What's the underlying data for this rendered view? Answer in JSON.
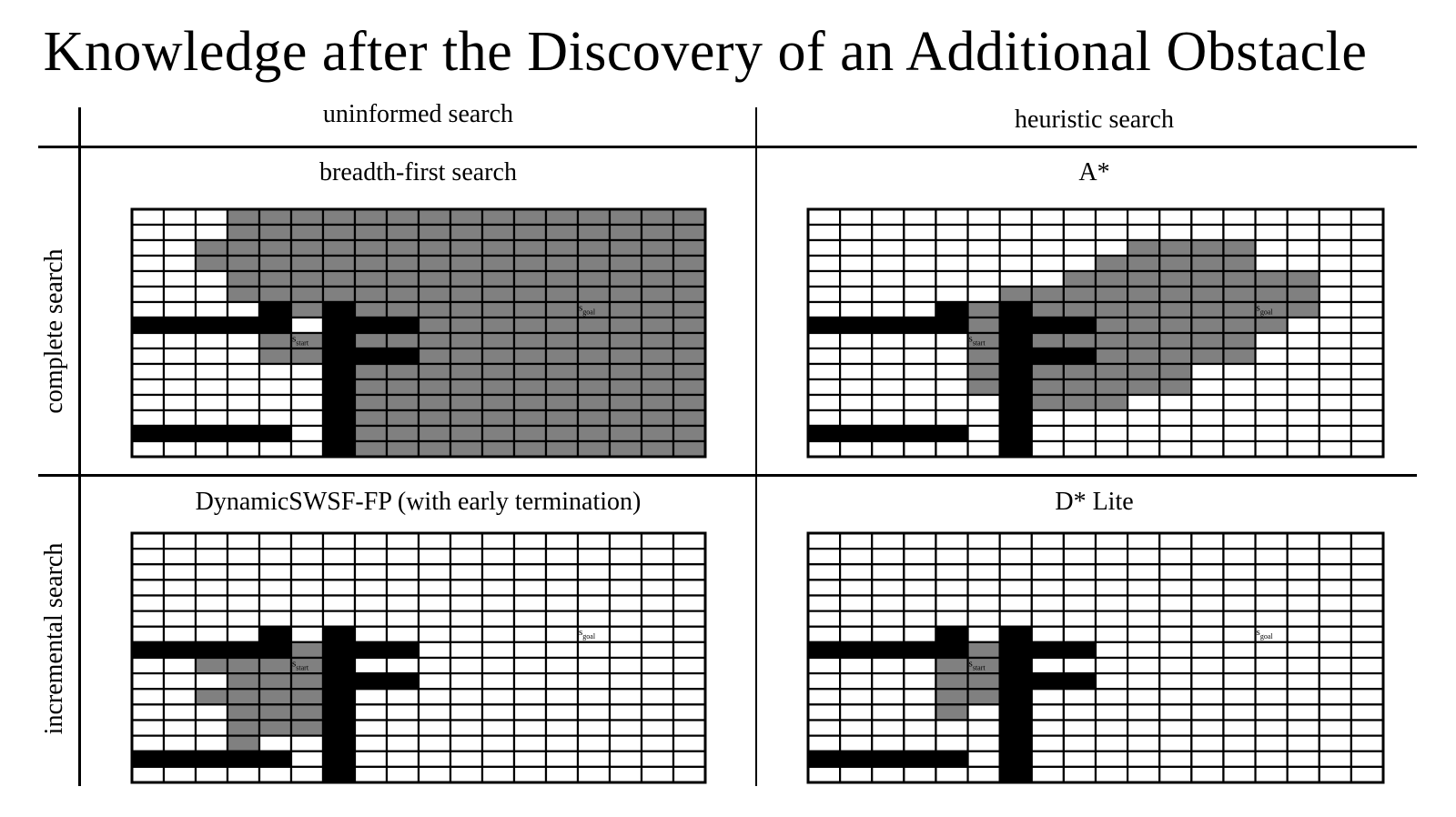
{
  "title": "Knowledge after the Discovery of an Additional Obstacle",
  "columns": [
    "uninformed search",
    "heuristic search"
  ],
  "rows": [
    "complete search",
    "incremental search"
  ],
  "panels": [
    {
      "id": "bfs",
      "title": "breadth-first search",
      "gray": [
        "0-2:3-18",
        "2-4:2-18",
        "4-5:3-18",
        "5-6:3-18",
        "6-7:4-18",
        "7-8:6-18",
        "8-10:4-18",
        "10-12:7-18",
        "12-16:7-18"
      ]
    },
    {
      "id": "astar",
      "title": "A*",
      "gray": [
        "2-3:10-14",
        "3-4:9-14",
        "4-5:8-16",
        "5-6:6-16",
        "6-7:5-16",
        "7-8:5-15",
        "8-10:5-14",
        "10-12:5-12",
        "12-13:7-10"
      ]
    },
    {
      "id": "dswsf",
      "title": "DynamicSWSF-FP (with early termination)",
      "gray": [
        "7-8:5-6",
        "8-9:2-6",
        "9-10:3-6",
        "10-11:2-6",
        "11-12:3-6",
        "12-13:3-6",
        "13-14:3-4"
      ]
    },
    {
      "id": "dstar",
      "title": "D* Lite",
      "gray": [
        "7-8:5-6",
        "8-9:4-6",
        "9-10:4-6",
        "10-11:4-6",
        "11-12:4-5"
      ]
    }
  ],
  "obstacles": [
    "7-8:0-5",
    "6-7:4-5",
    "6-16:6-7",
    "7-8:7-9",
    "9-10:7-9",
    "14-15:0-5"
  ],
  "labels": {
    "start_main": "s",
    "start_sub": "start",
    "goal_main": "s",
    "goal_sub": "goal"
  },
  "colors": {
    "obstacle": "#000000",
    "known": "#808080",
    "free": "#ffffff"
  }
}
